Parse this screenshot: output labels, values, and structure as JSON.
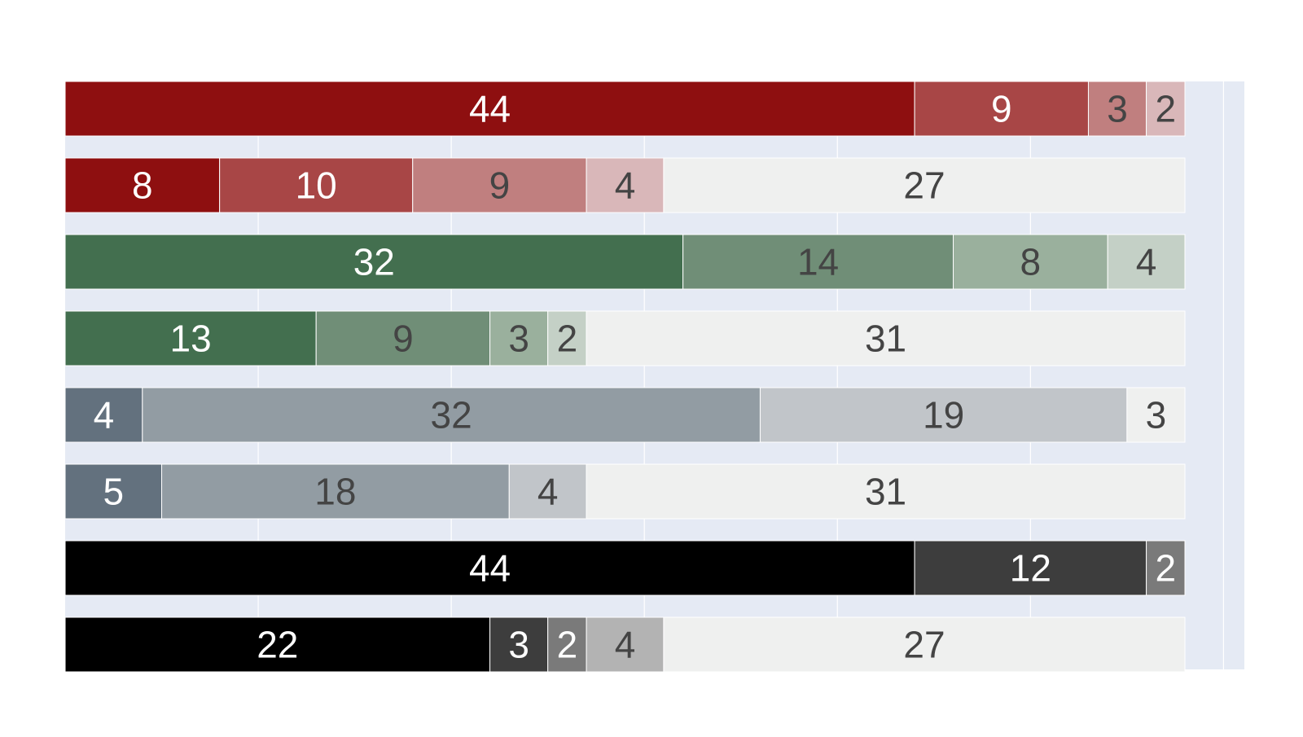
{
  "chart_data": {
    "type": "bar",
    "orientation": "horizontal",
    "stacked": true,
    "title": "",
    "xlabel": "",
    "ylabel": "",
    "xlim": [
      0,
      61
    ],
    "grid": true,
    "legend": "none",
    "plot_background": "#e5eaf4",
    "rows": [
      {
        "segments": [
          {
            "value": 44,
            "color": "#8e0f10",
            "text_color": "#ffffff"
          },
          {
            "value": 9,
            "color": "#a84646",
            "text_color": "#ffffff"
          },
          {
            "value": 3,
            "color": "#c07f7f",
            "text_color": "#444444"
          },
          {
            "value": 2,
            "color": "#d9b7b9",
            "text_color": "#444444"
          }
        ]
      },
      {
        "segments": [
          {
            "value": 8,
            "color": "#8e0f10",
            "text_color": "#ffffff"
          },
          {
            "value": 10,
            "color": "#a84646",
            "text_color": "#ffffff"
          },
          {
            "value": 9,
            "color": "#c07f7f",
            "text_color": "#444444"
          },
          {
            "value": 4,
            "color": "#d9b7b9",
            "text_color": "#444444"
          },
          {
            "value": 27,
            "color": "#eff0ef",
            "text_color": "#444444"
          }
        ]
      },
      {
        "segments": [
          {
            "value": 32,
            "color": "#436f4f",
            "text_color": "#ffffff"
          },
          {
            "value": 14,
            "color": "#708e77",
            "text_color": "#444444"
          },
          {
            "value": 8,
            "color": "#9ab09d",
            "text_color": "#444444"
          },
          {
            "value": 4,
            "color": "#c4d0c6",
            "text_color": "#444444"
          }
        ]
      },
      {
        "segments": [
          {
            "value": 13,
            "color": "#436f4f",
            "text_color": "#ffffff"
          },
          {
            "value": 9,
            "color": "#708e77",
            "text_color": "#444444"
          },
          {
            "value": 3,
            "color": "#9ab09d",
            "text_color": "#444444"
          },
          {
            "value": 2,
            "color": "#c4d0c6",
            "text_color": "#444444"
          },
          {
            "value": 31,
            "color": "#eff0ef",
            "text_color": "#444444"
          }
        ]
      },
      {
        "segments": [
          {
            "value": 4,
            "color": "#63717e",
            "text_color": "#ffffff"
          },
          {
            "value": 32,
            "color": "#929ca3",
            "text_color": "#444444"
          },
          {
            "value": 19,
            "color": "#c1c5c9",
            "text_color": "#444444"
          },
          {
            "value": 3,
            "color": "#eff0ef",
            "text_color": "#444444"
          }
        ]
      },
      {
        "segments": [
          {
            "value": 5,
            "color": "#63717e",
            "text_color": "#ffffff"
          },
          {
            "value": 18,
            "color": "#929ca3",
            "text_color": "#444444"
          },
          {
            "value": 4,
            "color": "#c1c5c9",
            "text_color": "#444444"
          },
          {
            "value": 31,
            "color": "#eff0ef",
            "text_color": "#444444"
          }
        ]
      },
      {
        "segments": [
          {
            "value": 44,
            "color": "#000000",
            "text_color": "#ffffff"
          },
          {
            "value": 12,
            "color": "#3d3d3d",
            "text_color": "#ffffff"
          },
          {
            "value": 2,
            "color": "#7a7a7a",
            "text_color": "#ffffff"
          }
        ]
      },
      {
        "segments": [
          {
            "value": 22,
            "color": "#000000",
            "text_color": "#ffffff"
          },
          {
            "value": 3,
            "color": "#3d3d3d",
            "text_color": "#ffffff"
          },
          {
            "value": 2,
            "color": "#7a7a7a",
            "text_color": "#ffffff"
          },
          {
            "value": 4,
            "color": "#b3b3b3",
            "text_color": "#444444"
          },
          {
            "value": 27,
            "color": "#eff0ef",
            "text_color": "#444444"
          }
        ]
      }
    ]
  }
}
